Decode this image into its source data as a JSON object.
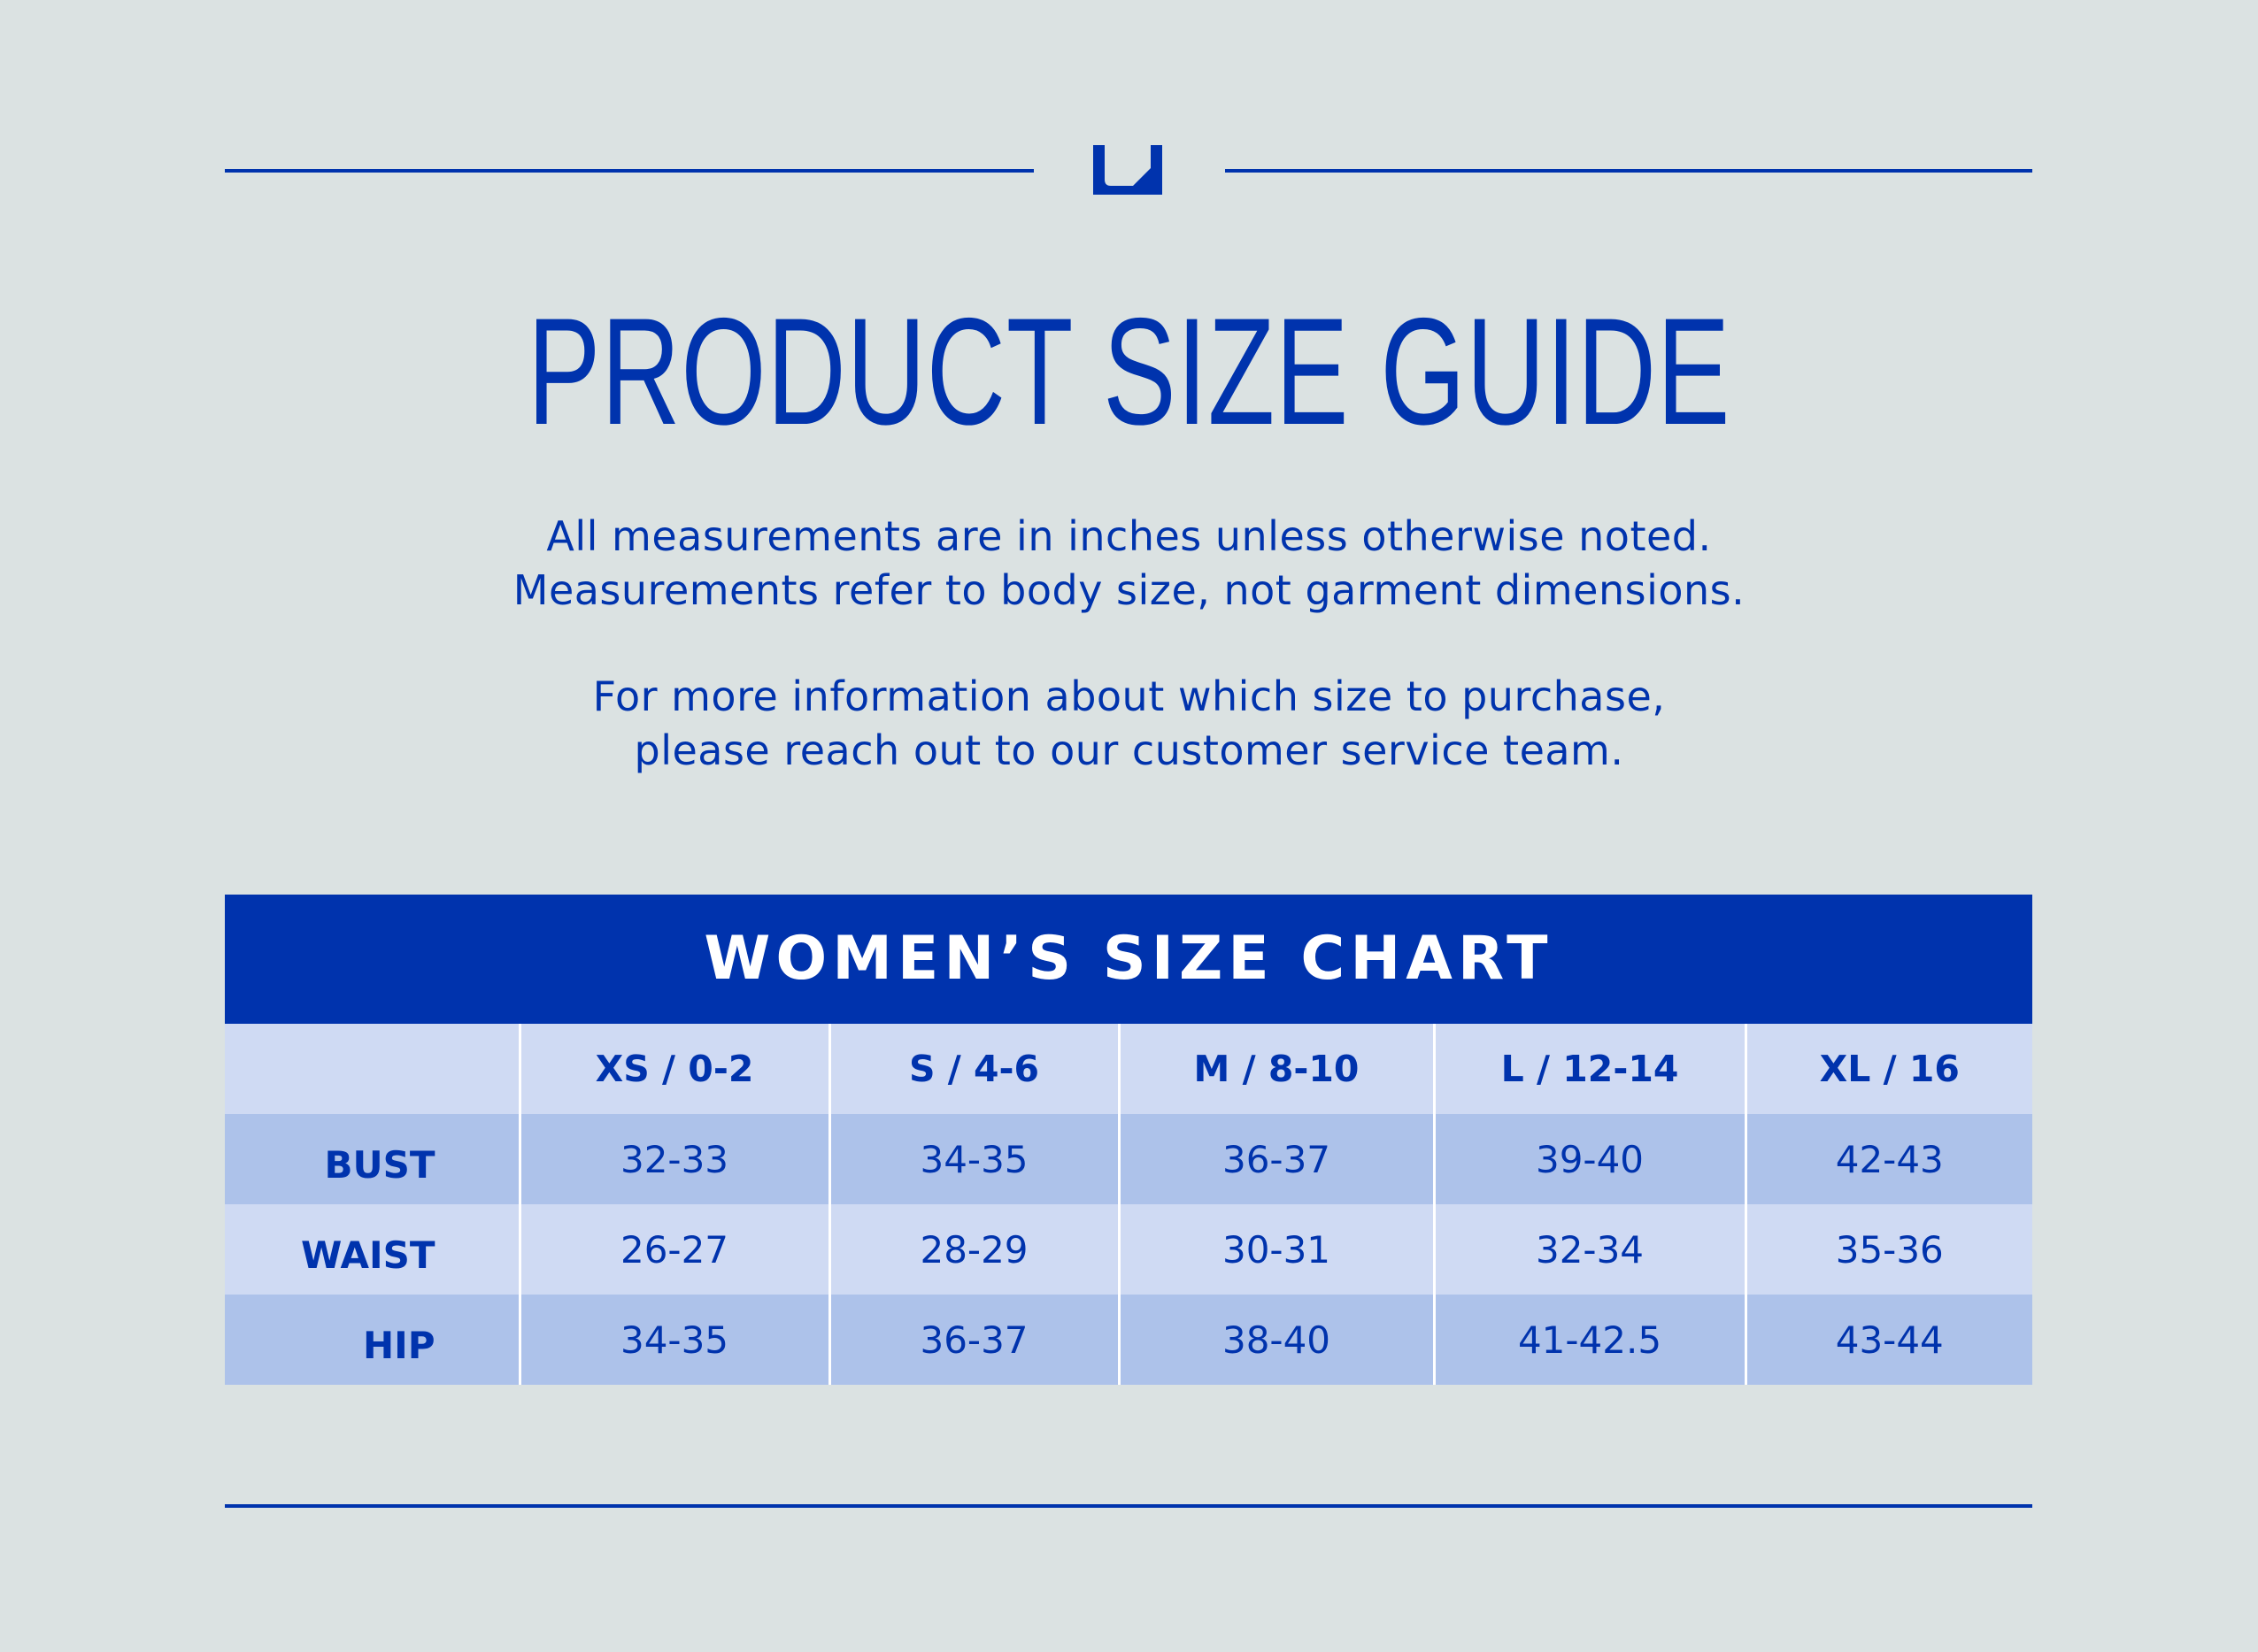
{
  "header": {
    "logo_icon": "brand-u-logo-icon",
    "title": "PRODUCT SIZE GUIDE"
  },
  "intro": {
    "line1": "All measurements are in inches unless otherwise noted.",
    "line2": "Measurements refer to body size, not garment dimensions.",
    "line3": "For more information about which size to purchase,",
    "line4": "please reach out to our customer service team."
  },
  "size_chart": {
    "title": "WOMEN’S SIZE CHART",
    "columns": [
      "",
      "XS / 0-2",
      "S / 4-6",
      "M / 8-10",
      "L / 12-14",
      "XL / 16"
    ],
    "rows": [
      {
        "label": "BUST",
        "values": [
          "32-33",
          "34-35",
          "36-37",
          "39-40",
          "42-43"
        ]
      },
      {
        "label": "WAIST",
        "values": [
          "26-27",
          "28-29",
          "30-31",
          "32-34",
          "35-36"
        ]
      },
      {
        "label": "HIP",
        "values": [
          "34-35",
          "36-37",
          "38-40",
          "41-42.5",
          "43-44"
        ]
      }
    ]
  },
  "colors": {
    "brand_blue": "#0033ad",
    "background": "#dbe2e2",
    "row_light": "#cfdaf3",
    "row_dark": "#adc2ea"
  }
}
